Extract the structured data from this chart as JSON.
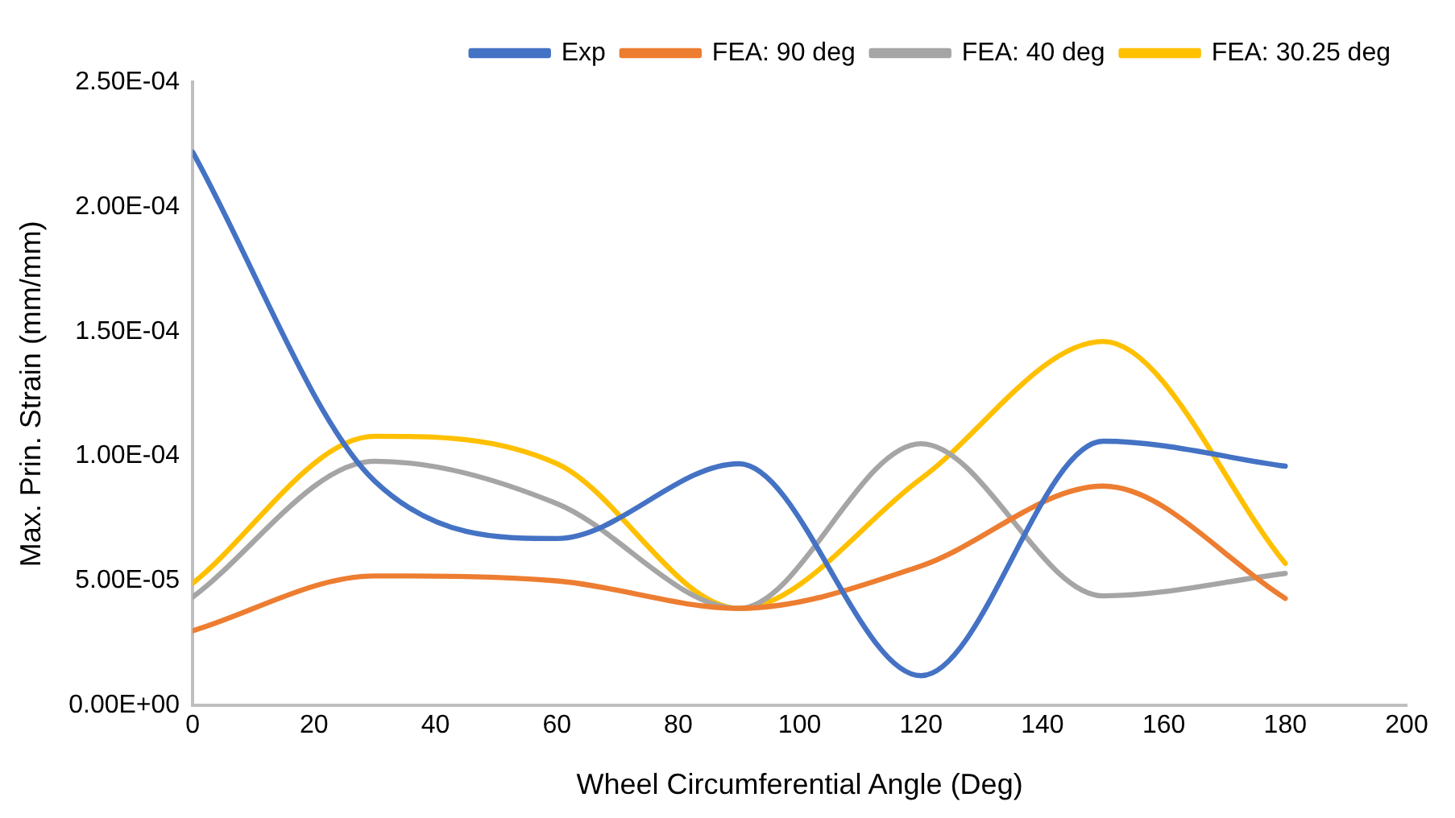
{
  "chart_data": {
    "type": "line",
    "xlabel": "Wheel Circumferential Angle (Deg)",
    "ylabel": "Max. Prin. Strain (mm/mm)",
    "x": [
      0,
      30,
      60,
      90,
      120,
      150,
      180
    ],
    "series": [
      {
        "name": "Exp",
        "color": "#4472c4",
        "values": [
          0.000222,
          9e-05,
          6.7e-05,
          9.7e-05,
          1.2e-05,
          0.000106,
          9.6e-05
        ]
      },
      {
        "name": "FEA: 90 deg",
        "color": "#ed7d31",
        "values": [
          3e-05,
          5.2e-05,
          5e-05,
          3.9e-05,
          5.6e-05,
          8.8e-05,
          4.3e-05
        ]
      },
      {
        "name": "FEA: 40 deg",
        "color": "#a5a5a5",
        "values": [
          4.35e-05,
          9.8e-05,
          8.1e-05,
          3.9e-05,
          0.000105,
          4.4e-05,
          5.3e-05
        ]
      },
      {
        "name": "FEA: 30.25 deg",
        "color": "#ffc000",
        "values": [
          4.9e-05,
          0.000108,
          9.7e-05,
          3.9e-05,
          9.1e-05,
          0.000146,
          5.7e-05
        ]
      }
    ],
    "xlim": [
      0,
      200
    ],
    "xticks": [
      0,
      20,
      40,
      60,
      80,
      100,
      120,
      140,
      160,
      180,
      200
    ],
    "ylim": [
      0,
      0.00025
    ],
    "yticks": [
      {
        "value": 0,
        "label": "0.00E+00"
      },
      {
        "value": 5e-05,
        "label": "5.00E-05"
      },
      {
        "value": 0.0001,
        "label": "1.00E-04"
      },
      {
        "value": 0.00015,
        "label": "1.50E-04"
      },
      {
        "value": 0.0002,
        "label": "2.00E-04"
      },
      {
        "value": 0.00025,
        "label": "2.50E-04"
      }
    ],
    "grid": false,
    "legend": "top right",
    "marker": "none",
    "line_style": "solid"
  }
}
